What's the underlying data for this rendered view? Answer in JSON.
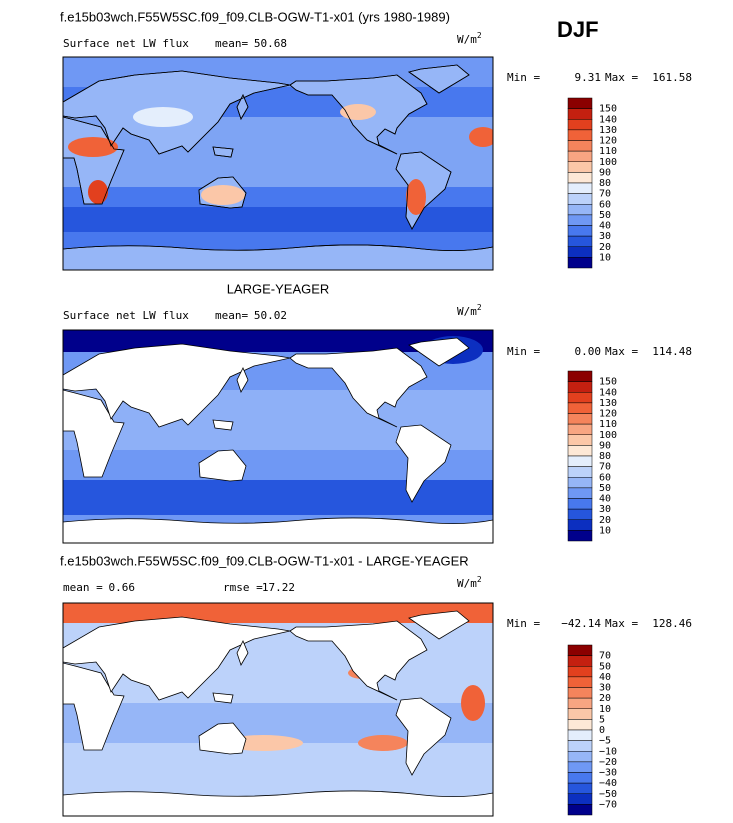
{
  "header": {
    "season": "DJF"
  },
  "panels": [
    {
      "title": "f.e15b03wch.F55W5SC.f09_f09.CLB-OGW-T1-x01 (yrs 1980-1989)",
      "variable": "Surface net LW flux",
      "stats": [
        {
          "label": "mean=",
          "value": "50.68"
        }
      ],
      "units": {
        "base": "W/m",
        "power": "2"
      },
      "range": {
        "min_label": "Min =",
        "min": "9.31",
        "max_label": "Max =",
        "max": "161.58"
      },
      "colorbar": {
        "levels": [
          "150",
          "140",
          "130",
          "120",
          "110",
          "100",
          "90",
          "80",
          "70",
          "60",
          "50",
          "40",
          "30",
          "20",
          "10"
        ],
        "colors": [
          "#8b0000",
          "#c42010",
          "#e2401e",
          "#f06238",
          "#f5845c",
          "#f8a582",
          "#fbc7a8",
          "#fde8d6",
          "#e4eefc",
          "#bcd2fa",
          "#96b6f7",
          "#6f98f4",
          "#4878ee",
          "#2656dd",
          "#0c2fc0",
          "#00008b"
        ]
      }
    },
    {
      "title": "LARGE-YEAGER",
      "variable": "Surface net LW flux",
      "stats": [
        {
          "label": "mean=",
          "value": "50.02"
        }
      ],
      "units": {
        "base": "W/m",
        "power": "2"
      },
      "range": {
        "min_label": "Min =",
        "min": "0.00",
        "max_label": "Max =",
        "max": "114.48"
      },
      "colorbar": {
        "levels": [
          "150",
          "140",
          "130",
          "120",
          "110",
          "100",
          "90",
          "80",
          "70",
          "60",
          "50",
          "40",
          "30",
          "20",
          "10"
        ],
        "colors": [
          "#8b0000",
          "#c42010",
          "#e2401e",
          "#f06238",
          "#f5845c",
          "#f8a582",
          "#fbc7a8",
          "#fde8d6",
          "#e4eefc",
          "#bcd2fa",
          "#96b6f7",
          "#6f98f4",
          "#4878ee",
          "#2656dd",
          "#0c2fc0",
          "#00008b"
        ]
      }
    },
    {
      "title": "f.e15b03wch.F55W5SC.f09_f09.CLB-OGW-T1-x01 - LARGE-YEAGER",
      "stats": [
        {
          "label": "mean =",
          "value": "0.66"
        },
        {
          "label": "rmse =",
          "value": "17.22"
        }
      ],
      "units": {
        "base": "W/m",
        "power": "2"
      },
      "range": {
        "min_label": "Min =",
        "min": "−42.14",
        "max_label": "Max =",
        "max": "128.46"
      },
      "colorbar": {
        "levels": [
          "70",
          "50",
          "40",
          "30",
          "20",
          "10",
          "5",
          "0",
          "−5",
          "−10",
          "−20",
          "−30",
          "−40",
          "−50",
          "−70"
        ],
        "colors": [
          "#8b0000",
          "#c42010",
          "#e2401e",
          "#f06238",
          "#f5845c",
          "#f8a582",
          "#fbc7a8",
          "#fde8d6",
          "#e4eefc",
          "#bcd2fa",
          "#96b6f7",
          "#6f98f4",
          "#4878ee",
          "#2656dd",
          "#0c2fc0",
          "#00008b"
        ]
      }
    }
  ]
}
